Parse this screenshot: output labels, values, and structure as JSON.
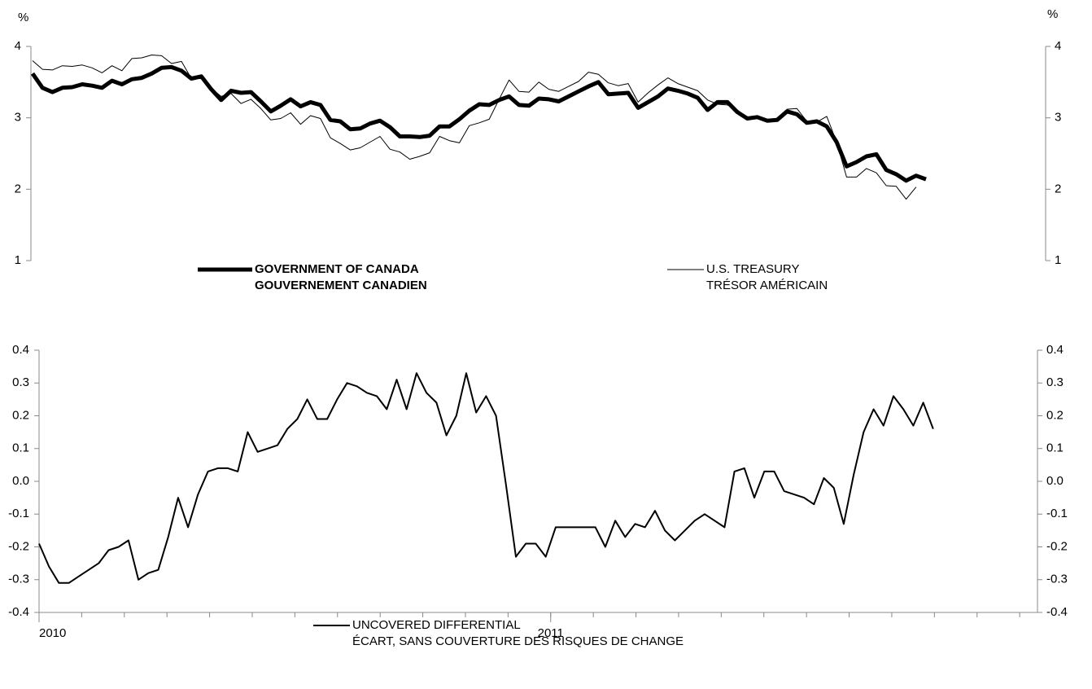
{
  "chart_data": [
    {
      "type": "line",
      "y_label": "%",
      "y2_label": "%",
      "ylim": [
        1,
        4
      ],
      "yticks": [
        1,
        2,
        3,
        4
      ],
      "y2lim": [
        1,
        4
      ],
      "y2ticks": [
        1,
        2,
        3,
        4
      ],
      "series": [
        {
          "name": "GOVERNMENT OF CANADA",
          "name_fr": "GOUVERNEMENT CANADIEN",
          "color": "#000000",
          "width": 5,
          "values": [
            3.62,
            3.42,
            3.36,
            3.42,
            3.43,
            3.47,
            3.45,
            3.42,
            3.52,
            3.47,
            3.54,
            3.56,
            3.62,
            3.7,
            3.71,
            3.66,
            3.55,
            3.58,
            3.4,
            3.25,
            3.38,
            3.35,
            3.36,
            3.23,
            3.09,
            3.17,
            3.26,
            3.16,
            3.22,
            3.18,
            2.97,
            2.95,
            2.84,
            2.85,
            2.92,
            2.96,
            2.87,
            2.74,
            2.74,
            2.73,
            2.75,
            2.88,
            2.88,
            2.98,
            3.1,
            3.19,
            3.18,
            3.25,
            3.3,
            3.18,
            3.17,
            3.27,
            3.26,
            3.23,
            3.3,
            3.37,
            3.44,
            3.5,
            3.33,
            3.34,
            3.35,
            3.14,
            3.22,
            3.3,
            3.41,
            3.38,
            3.34,
            3.28,
            3.11,
            3.22,
            3.22,
            3.08,
            2.99,
            3.01,
            2.96,
            2.97,
            3.09,
            3.05,
            2.93,
            2.95,
            2.88,
            2.66,
            2.32,
            2.38,
            2.46,
            2.49,
            2.27,
            2.21,
            2.12,
            2.19,
            2.14
          ]
        },
        {
          "name": "U.S. TREASURY",
          "name_fr": "TRÉSOR AMÉRICAIN",
          "color": "#000000",
          "width": 1,
          "values": [
            3.8,
            3.68,
            3.67,
            3.73,
            3.72,
            3.74,
            3.7,
            3.63,
            3.73,
            3.66,
            3.83,
            3.84,
            3.88,
            3.87,
            3.76,
            3.79,
            3.55,
            3.55,
            3.41,
            3.3,
            3.34,
            3.2,
            3.26,
            3.13,
            2.97,
            2.99,
            3.07,
            2.91,
            3.03,
            2.99,
            2.72,
            2.64,
            2.55,
            2.58,
            2.66,
            2.74,
            2.56,
            2.52,
            2.42,
            2.46,
            2.51,
            2.74,
            2.68,
            2.65,
            2.89,
            2.93,
            2.98,
            3.26,
            3.53,
            3.37,
            3.36,
            3.5,
            3.4,
            3.37,
            3.44,
            3.51,
            3.64,
            3.61,
            3.49,
            3.45,
            3.48,
            3.22,
            3.35,
            3.46,
            3.56,
            3.48,
            3.43,
            3.38,
            3.25,
            3.19,
            3.18,
            3.11,
            3.0,
            3.0,
            2.95,
            2.98,
            3.12,
            3.13,
            2.95,
            2.94,
            3.02,
            2.66,
            2.17,
            2.17,
            2.29,
            2.23,
            2.05,
            2.04,
            1.86,
            2.03,
            null
          ]
        }
      ]
    },
    {
      "type": "line",
      "ylim": [
        -0.4,
        0.4
      ],
      "yticks": [
        -0.4,
        -0.3,
        -0.2,
        -0.1,
        {
          "value": 0,
          "label": "0.0"
        },
        0.1,
        0.2,
        0.3,
        0.4
      ],
      "y2lim": [
        -0.4,
        0.4
      ],
      "y2ticks": [
        -0.4,
        -0.3,
        -0.2,
        -0.1,
        {
          "value": 0,
          "label": "0.0"
        },
        0.1,
        0.2,
        0.3,
        0.4
      ],
      "xlim": [
        0,
        100.5
      ],
      "xticks": [
        {
          "value": 0,
          "label": "2010"
        },
        {
          "value": 51.5,
          "label": "2011"
        }
      ],
      "series": [
        {
          "name": "UNCOVERED DIFFERENTIAL",
          "name_fr": "ÉCART, SANS COUVERTURE DES RISQUES DE CHANGE",
          "color": "#000000",
          "width": 2,
          "values": [
            -0.19,
            -0.26,
            -0.31,
            -0.31,
            -0.29,
            -0.27,
            -0.25,
            -0.21,
            -0.2,
            -0.18,
            -0.3,
            -0.28,
            -0.27,
            -0.17,
            -0.05,
            -0.14,
            -0.04,
            0.03,
            0.04,
            0.04,
            0.03,
            0.15,
            0.09,
            0.1,
            0.11,
            0.16,
            0.19,
            0.25,
            0.19,
            0.19,
            0.25,
            0.3,
            0.29,
            0.27,
            0.26,
            0.22,
            0.31,
            0.22,
            0.33,
            0.27,
            0.24,
            0.14,
            0.2,
            0.33,
            0.21,
            0.26,
            0.2,
            -0.01,
            -0.23,
            -0.19,
            -0.19,
            -0.23,
            -0.14,
            -0.14,
            -0.14,
            -0.14,
            -0.14,
            -0.2,
            -0.12,
            -0.17,
            -0.13,
            -0.14,
            -0.09,
            -0.15,
            -0.18,
            -0.15,
            -0.12,
            -0.1,
            -0.12,
            -0.14,
            0.03,
            0.04,
            -0.05,
            0.03,
            0.03,
            -0.03,
            -0.04,
            -0.05,
            -0.07,
            0.01,
            -0.02,
            -0.13,
            0.02,
            0.15,
            0.22,
            0.17,
            0.26,
            0.22,
            0.17,
            0.24,
            0.16
          ]
        }
      ]
    }
  ]
}
